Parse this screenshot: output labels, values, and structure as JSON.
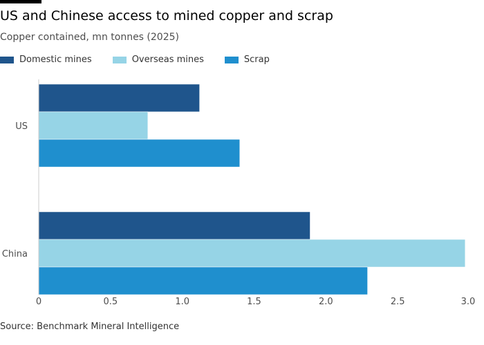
{
  "title": "US and Chinese access to mined copper and scrap",
  "subtitle": "Copper contained, mn tonnes (2025)",
  "source": "Source: Benchmark Mineral Intelligence",
  "chart_data": {
    "type": "bar",
    "orientation": "horizontal",
    "categories": [
      "US",
      "China"
    ],
    "series": [
      {
        "name": "Domestic mines",
        "color": "#1f558c",
        "values": [
          1.12,
          1.89
        ]
      },
      {
        "name": "Overseas mines",
        "color": "#96d4e6",
        "values": [
          0.76,
          2.97
        ]
      },
      {
        "name": "Scrap",
        "color": "#1f8fce",
        "values": [
          1.4,
          2.29
        ]
      }
    ],
    "xlim": [
      0,
      3.0
    ],
    "xticks": [
      "0",
      "0.5",
      "1.0",
      "1.5",
      "2.0",
      "2.5",
      "3.0"
    ],
    "legend": "top-left",
    "grid": true
  }
}
